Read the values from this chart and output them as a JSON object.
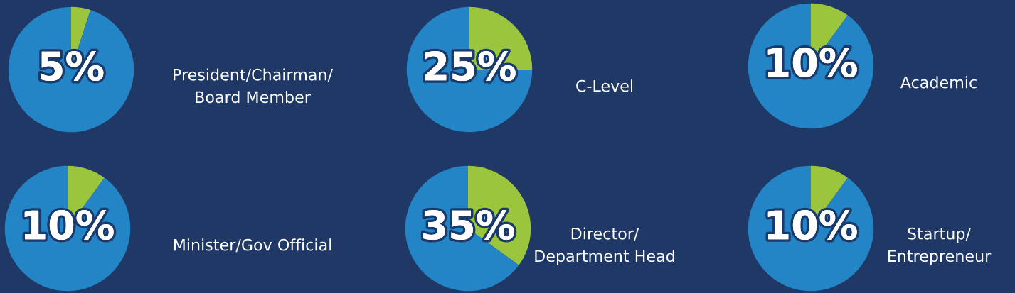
{
  "chart_data": [
    {
      "type": "pie",
      "title": "President/Chairman/\nBoard Member",
      "categories": [
        null,
        null
      ],
      "values": [
        5,
        95
      ],
      "colors": [
        "#9bc53d",
        "#2384c6"
      ],
      "value_labels": [
        "5%",
        null
      ]
    },
    {
      "type": "pie",
      "title": "C-Level",
      "categories": [
        null,
        null
      ],
      "values": [
        25,
        75
      ],
      "colors": [
        "#9bc53d",
        "#2384c6"
      ],
      "value_labels": [
        "25%",
        null
      ]
    },
    {
      "type": "pie",
      "title": "Academic",
      "categories": [
        null,
        null
      ],
      "values": [
        10,
        90
      ],
      "colors": [
        "#9bc53d",
        "#2384c6"
      ],
      "value_labels": [
        "10%",
        null
      ]
    },
    {
      "type": "pie",
      "title": "Minister/Gov Official",
      "categories": [
        null,
        null
      ],
      "values": [
        10,
        90
      ],
      "colors": [
        "#9bc53d",
        "#2384c6"
      ],
      "value_labels": [
        "10%",
        null
      ]
    },
    {
      "type": "pie",
      "title": "Director/\nDepartment Head",
      "categories": [
        null,
        null
      ],
      "values": [
        35,
        65
      ],
      "colors": [
        "#9bc53d",
        "#2384c6"
      ],
      "value_labels": [
        "35%",
        null
      ]
    },
    {
      "type": "pie",
      "title": "Startup/\nEntrepreneur",
      "categories": [
        null,
        null
      ],
      "values": [
        10,
        90
      ],
      "colors": [
        "#9bc53d",
        "#2384c6"
      ],
      "value_labels": [
        "10%",
        null
      ]
    }
  ]
}
